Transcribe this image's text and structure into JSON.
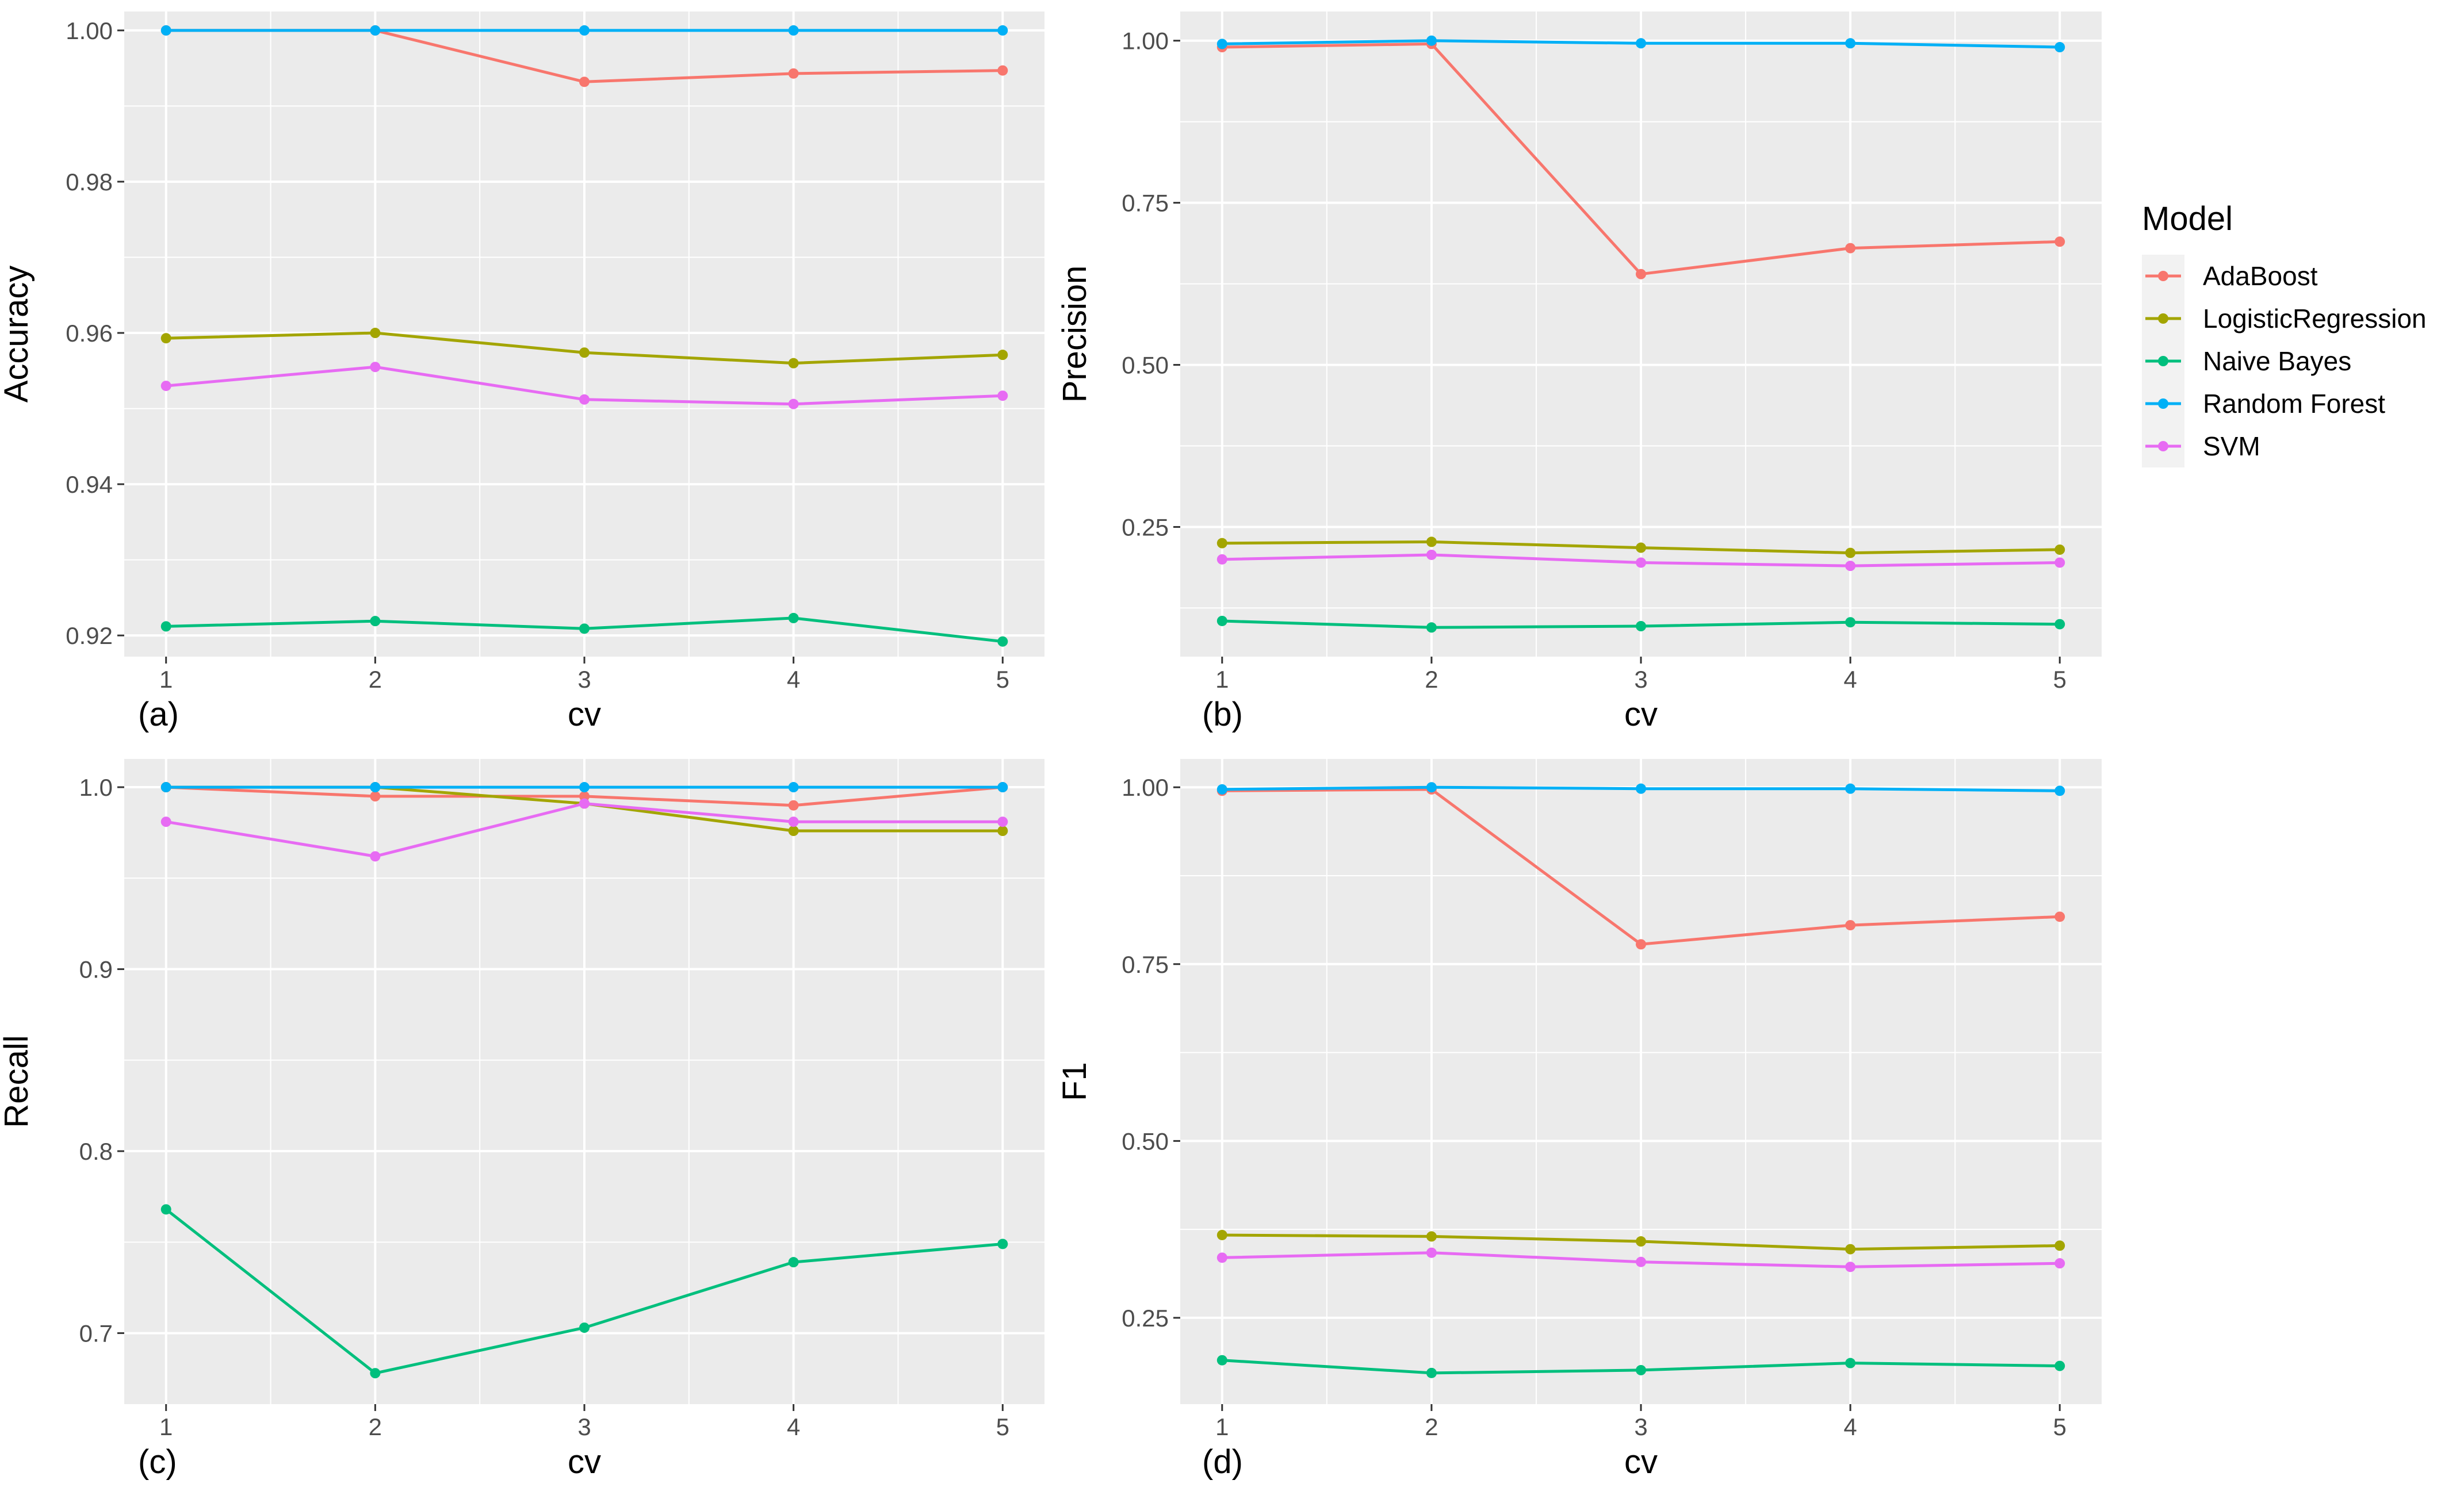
{
  "chart_data": [
    {
      "type": "line",
      "panel_label": "(a)",
      "xlabel": "cv",
      "ylabel": "Accuracy",
      "x": [
        1,
        2,
        3,
        4,
        5
      ],
      "xticks": [
        "1",
        "2",
        "3",
        "4",
        "5"
      ],
      "xlim": [
        0.8,
        5.2
      ],
      "ylim": [
        0.9172,
        1.0025
      ],
      "yticks": [
        0.92,
        0.94,
        0.96,
        0.98,
        1.0
      ],
      "yticklabels": [
        "0.92",
        "0.94",
        "0.96",
        "0.98",
        "1.00"
      ],
      "yminor": [
        0.93,
        0.95,
        0.97,
        0.99
      ],
      "series": [
        {
          "name": "AdaBoost",
          "values": [
            1.0,
            1.0,
            0.9932,
            0.9943,
            0.9947
          ]
        },
        {
          "name": "LogisticRegression",
          "values": [
            0.9593,
            0.96,
            0.9574,
            0.956,
            0.9571
          ]
        },
        {
          "name": "Naive Bayes",
          "values": [
            0.9212,
            0.9219,
            0.9209,
            0.9223,
            0.9192
          ]
        },
        {
          "name": "Random Forest",
          "values": [
            1.0,
            1.0,
            1.0,
            1.0,
            1.0
          ]
        },
        {
          "name": "SVM",
          "values": [
            0.953,
            0.9555,
            0.9512,
            0.9506,
            0.9517
          ]
        }
      ]
    },
    {
      "type": "line",
      "panel_label": "(b)",
      "xlabel": "cv",
      "ylabel": "Precision",
      "x": [
        1,
        2,
        3,
        4,
        5
      ],
      "xticks": [
        "1",
        "2",
        "3",
        "4",
        "5"
      ],
      "xlim": [
        0.8,
        5.2
      ],
      "ylim": [
        0.05,
        1.045
      ],
      "yticks": [
        0.25,
        0.5,
        0.75,
        1.0
      ],
      "yticklabels": [
        "0.25",
        "0.50",
        "0.75",
        "1.00"
      ],
      "yminor": [
        0.125,
        0.375,
        0.625,
        0.875
      ],
      "series": [
        {
          "name": "AdaBoost",
          "values": [
            0.99,
            0.995,
            0.64,
            0.68,
            0.69
          ]
        },
        {
          "name": "LogisticRegression",
          "values": [
            0.225,
            0.227,
            0.218,
            0.21,
            0.215
          ]
        },
        {
          "name": "Naive Bayes",
          "values": [
            0.105,
            0.095,
            0.097,
            0.103,
            0.1
          ]
        },
        {
          "name": "Random Forest",
          "values": [
            0.995,
            1.0,
            0.996,
            0.996,
            0.99
          ]
        },
        {
          "name": "SVM",
          "values": [
            0.2,
            0.207,
            0.195,
            0.19,
            0.195
          ]
        }
      ]
    },
    {
      "type": "line",
      "panel_label": "(c)",
      "xlabel": "cv",
      "ylabel": "Recall",
      "x": [
        1,
        2,
        3,
        4,
        5
      ],
      "xticks": [
        "1",
        "2",
        "3",
        "4",
        "5"
      ],
      "xlim": [
        0.8,
        5.2
      ],
      "ylim": [
        0.661,
        1.0155
      ],
      "yticks": [
        0.7,
        0.8,
        0.9,
        1.0
      ],
      "yticklabels": [
        "0.7",
        "0.8",
        "0.9",
        "1.0"
      ],
      "yminor": [
        0.75,
        0.85,
        0.95
      ],
      "series": [
        {
          "name": "AdaBoost",
          "values": [
            1.0,
            0.995,
            0.995,
            0.99,
            1.0
          ]
        },
        {
          "name": "LogisticRegression",
          "values": [
            1.0,
            1.0,
            0.991,
            0.976,
            0.976
          ]
        },
        {
          "name": "Naive Bayes",
          "values": [
            0.768,
            0.678,
            0.703,
            0.739,
            0.749
          ]
        },
        {
          "name": "Random Forest",
          "values": [
            1.0,
            1.0,
            1.0,
            1.0,
            1.0
          ]
        },
        {
          "name": "SVM",
          "values": [
            0.981,
            0.962,
            0.991,
            0.981,
            0.981
          ]
        }
      ]
    },
    {
      "type": "line",
      "panel_label": "(d)",
      "xlabel": "cv",
      "ylabel": "F1",
      "x": [
        1,
        2,
        3,
        4,
        5
      ],
      "xticks": [
        "1",
        "2",
        "3",
        "4",
        "5"
      ],
      "xlim": [
        0.8,
        5.2
      ],
      "ylim": [
        0.128,
        1.04
      ],
      "yticks": [
        0.25,
        0.5,
        0.75,
        1.0
      ],
      "yticklabels": [
        "0.25",
        "0.50",
        "0.75",
        "1.00"
      ],
      "yminor": [
        0.375,
        0.625,
        0.875
      ],
      "series": [
        {
          "name": "AdaBoost",
          "values": [
            0.995,
            0.997,
            0.778,
            0.805,
            0.817
          ]
        },
        {
          "name": "LogisticRegression",
          "values": [
            0.367,
            0.365,
            0.358,
            0.347,
            0.352
          ]
        },
        {
          "name": "Naive Bayes",
          "values": [
            0.19,
            0.172,
            0.176,
            0.186,
            0.182
          ]
        },
        {
          "name": "Random Forest",
          "values": [
            0.997,
            1.0,
            0.998,
            0.998,
            0.995
          ]
        },
        {
          "name": "SVM",
          "values": [
            0.335,
            0.342,
            0.329,
            0.322,
            0.327
          ]
        }
      ]
    }
  ],
  "legend": {
    "title": "Model",
    "items": [
      {
        "label": "AdaBoost",
        "color": "#F8766D"
      },
      {
        "label": "LogisticRegression",
        "color": "#A3A500"
      },
      {
        "label": "Naive Bayes",
        "color": "#00BF7D"
      },
      {
        "label": "Random Forest",
        "color": "#00B0F6"
      },
      {
        "label": "SVM",
        "color": "#E76BF3"
      }
    ]
  },
  "colors": {
    "panel_background": "#EBEBEB",
    "grid": "#FFFFFF",
    "tick_text": "#4D4D4D",
    "tick_mark": "#333333"
  }
}
